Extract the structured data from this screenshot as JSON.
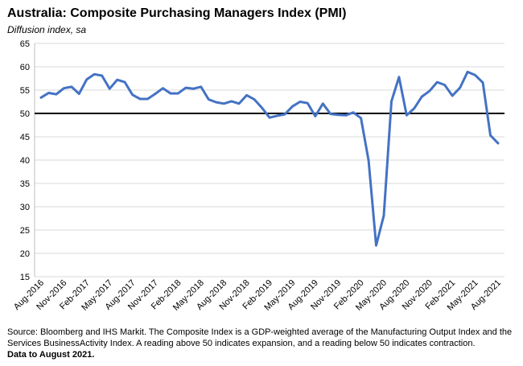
{
  "chart_data": {
    "type": "line",
    "title": "Australia:  Composite Purchasing Managers Index (PMI)",
    "subtitle": "Diffusion index, sa",
    "xlabel": "",
    "ylabel": "",
    "ylim": [
      15,
      65
    ],
    "yticks": [
      15,
      20,
      25,
      30,
      35,
      40,
      45,
      50,
      55,
      60,
      65
    ],
    "reference_line": 50,
    "grid": "horizontal",
    "line_color": "#4472C4",
    "x_tick_labels": [
      "Aug-2016",
      "Nov-2016",
      "Feb-2017",
      "May-2017",
      "Aug-2017",
      "Nov-2017",
      "Feb-2018",
      "May-2018",
      "Aug-2018",
      "Nov-2018",
      "Feb-2019",
      "May-2019",
      "Aug-2019",
      "Nov-2019",
      "Feb-2020",
      "May-2020",
      "Aug-2020",
      "Nov-2020",
      "Feb-2021",
      "May-2021",
      "Aug-2021"
    ],
    "x": [
      "Aug-2016",
      "Sep-2016",
      "Oct-2016",
      "Nov-2016",
      "Dec-2016",
      "Jan-2017",
      "Feb-2017",
      "Mar-2017",
      "Apr-2017",
      "May-2017",
      "Jun-2017",
      "Jul-2017",
      "Aug-2017",
      "Sep-2017",
      "Oct-2017",
      "Nov-2017",
      "Dec-2017",
      "Jan-2018",
      "Feb-2018",
      "Mar-2018",
      "Apr-2018",
      "May-2018",
      "Jun-2018",
      "Jul-2018",
      "Aug-2018",
      "Sep-2018",
      "Oct-2018",
      "Nov-2018",
      "Dec-2018",
      "Jan-2019",
      "Feb-2019",
      "Mar-2019",
      "Apr-2019",
      "May-2019",
      "Jun-2019",
      "Jul-2019",
      "Aug-2019",
      "Sep-2019",
      "Oct-2019",
      "Nov-2019",
      "Dec-2019",
      "Jan-2020",
      "Feb-2020",
      "Mar-2020",
      "Apr-2020",
      "May-2020",
      "Jun-2020",
      "Jul-2020",
      "Aug-2020",
      "Sep-2020",
      "Oct-2020",
      "Nov-2020",
      "Dec-2020",
      "Jan-2021",
      "Feb-2021",
      "Mar-2021",
      "Apr-2021",
      "May-2021",
      "Jun-2021",
      "Jul-2021",
      "Aug-2021"
    ],
    "series": [
      {
        "values": [
          53.4,
          54.4,
          54.1,
          55.4,
          55.7,
          54.2,
          57.3,
          58.4,
          58.1,
          55.3,
          57.2,
          56.7,
          54.0,
          53.1,
          53.1,
          54.2,
          55.4,
          54.3,
          54.3,
          55.5,
          55.3,
          55.7,
          53.0,
          52.4,
          52.1,
          52.6,
          52.1,
          53.9,
          53.0,
          51.2,
          49.1,
          49.5,
          49.8,
          51.5,
          52.5,
          52.2,
          49.4,
          52.1,
          49.9,
          49.7,
          49.6,
          50.2,
          49.0,
          39.9,
          21.7,
          28.1,
          52.6,
          57.8,
          49.6,
          51.1,
          53.6,
          54.8,
          56.7,
          56.1,
          53.8,
          55.5,
          58.9,
          58.2,
          56.6,
          45.3,
          43.6
        ]
      }
    ]
  },
  "footnote": {
    "text": "Source: Bloomberg and IHS Markit. The Composite Index is a GDP-weighted average of the Manufacturing Output Index and the Services BusinessActivity Index.  A reading above 50 indicates expansion, and a reading below 50 indicates contraction.",
    "bold_text": "Data to August 2021."
  }
}
